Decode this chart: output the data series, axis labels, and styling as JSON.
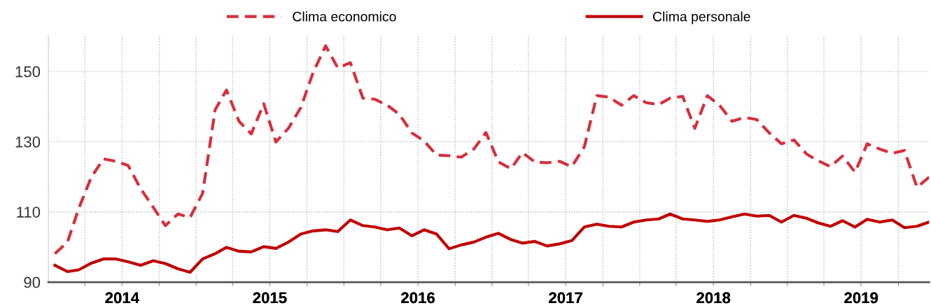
{
  "chart_data": {
    "type": "line",
    "x": [
      "2014-01",
      "2014-02",
      "2014-03",
      "2014-04",
      "2014-05",
      "2014-06",
      "2014-07",
      "2014-08",
      "2014-09",
      "2014-10",
      "2014-11",
      "2014-12",
      "2015-01",
      "2015-02",
      "2015-03",
      "2015-04",
      "2015-05",
      "2015-06",
      "2015-07",
      "2015-08",
      "2015-09",
      "2015-10",
      "2015-11",
      "2015-12",
      "2016-01",
      "2016-02",
      "2016-03",
      "2016-04",
      "2016-05",
      "2016-06",
      "2016-07",
      "2016-08",
      "2016-09",
      "2016-10",
      "2016-11",
      "2016-12",
      "2017-01",
      "2017-02",
      "2017-03",
      "2017-04",
      "2017-05",
      "2017-06",
      "2017-07",
      "2017-08",
      "2017-09",
      "2017-10",
      "2017-11",
      "2017-12",
      "2018-01",
      "2018-02",
      "2018-03",
      "2018-04",
      "2018-05",
      "2018-06",
      "2018-07",
      "2018-08",
      "2018-09",
      "2018-10",
      "2018-11",
      "2018-12",
      "2019-01",
      "2019-02",
      "2019-03",
      "2019-04",
      "2019-05",
      "2019-06",
      "2019-07",
      "2019-08",
      "2019-09",
      "2019-10",
      "2019-11",
      "2019-12"
    ],
    "series": [
      {
        "name": "Clima economico",
        "color": "#d62f3c",
        "line_style": "dashed",
        "values": [
          98.1,
          101.4,
          111.0,
          119.9,
          125.1,
          124.4,
          123.2,
          116.6,
          111.3,
          106.1,
          109.4,
          108.4,
          115.3,
          139.1,
          144.7,
          135.8,
          132.2,
          140.8,
          129.9,
          133.8,
          139.8,
          149.7,
          157.3,
          151.0,
          152.5,
          142.4,
          142.1,
          140.4,
          137.8,
          132.5,
          130.2,
          126.2,
          126.0,
          125.6,
          127.9,
          132.6,
          124.2,
          122.3,
          126.9,
          124.2,
          124.0,
          124.4,
          122.9,
          128.5,
          143.1,
          142.7,
          140.4,
          143.1,
          141.1,
          140.6,
          142.4,
          142.9,
          133.8,
          143.1,
          140.4,
          135.8,
          136.9,
          136.3,
          132.5,
          129.4,
          130.5,
          126.5,
          124.6,
          122.9,
          125.9,
          121.3,
          129.4,
          127.9,
          126.7,
          127.5,
          117.0,
          119.9
        ]
      },
      {
        "name": "Clima personale",
        "color": "#c00000",
        "line_style": "solid",
        "values": [
          94.8,
          93.0,
          93.5,
          95.4,
          96.6,
          96.6,
          95.8,
          94.8,
          96.1,
          95.3,
          93.8,
          92.8,
          96.6,
          98.1,
          99.9,
          98.8,
          98.6,
          100.1,
          99.6,
          101.4,
          103.7,
          104.6,
          104.9,
          104.4,
          107.7,
          106.1,
          105.7,
          104.9,
          105.4,
          103.2,
          104.9,
          103.7,
          99.5,
          100.6,
          101.4,
          102.8,
          103.9,
          102.1,
          101.1,
          101.6,
          100.3,
          100.9,
          101.8,
          105.7,
          106.5,
          105.9,
          105.7,
          107.1,
          107.7,
          108.0,
          109.4,
          108.0,
          107.7,
          107.3,
          107.7,
          108.6,
          109.4,
          108.8,
          109.0,
          107.1,
          109.0,
          108.2,
          106.9,
          105.9,
          107.5,
          105.7,
          107.9,
          107.1,
          107.7,
          105.5,
          105.9,
          107.1
        ]
      }
    ],
    "xlim": [
      "2013-12-16",
      "2019-12-01"
    ],
    "xticks": [
      {
        "value": "2014-03-16",
        "label": null
      },
      {
        "value": "2014-06-16",
        "label": null
      },
      {
        "value": "2014-09-16",
        "label": null
      },
      {
        "value": "2014-12-16",
        "label": null
      },
      {
        "value": "2015-03-16",
        "label": null
      },
      {
        "value": "2015-06-16",
        "label": null
      },
      {
        "value": "2015-09-16",
        "label": null
      },
      {
        "value": "2015-12-16",
        "label": null
      },
      {
        "value": "2016-03-16",
        "label": null
      },
      {
        "value": "2016-06-16",
        "label": null
      },
      {
        "value": "2016-09-16",
        "label": null
      },
      {
        "value": "2016-12-16",
        "label": null
      },
      {
        "value": "2017-03-16",
        "label": null
      },
      {
        "value": "2017-06-16",
        "label": null
      },
      {
        "value": "2017-09-16",
        "label": null
      },
      {
        "value": "2017-12-16",
        "label": null
      },
      {
        "value": "2018-03-16",
        "label": null
      },
      {
        "value": "2018-06-16",
        "label": null
      },
      {
        "value": "2018-09-16",
        "label": null
      },
      {
        "value": "2018-12-16",
        "label": null
      },
      {
        "value": "2019-03-16",
        "label": null
      },
      {
        "value": "2019-06-16",
        "label": null
      },
      {
        "value": "2019-09-16",
        "label": null
      },
      {
        "value": "2014-06-16",
        "label": "2014"
      },
      {
        "value": "2015-06-16",
        "label": "2015"
      },
      {
        "value": "2016-06-16",
        "label": "2016"
      },
      {
        "value": "2017-06-16",
        "label": "2017"
      },
      {
        "value": "2018-06-16",
        "label": "2018"
      },
      {
        "value": "2019-06-16",
        "label": "2019"
      }
    ],
    "ylim": [
      90,
      160
    ],
    "yticks": [
      90,
      110,
      130,
      150
    ],
    "grid": true,
    "legend": "top",
    "marker": "none"
  }
}
